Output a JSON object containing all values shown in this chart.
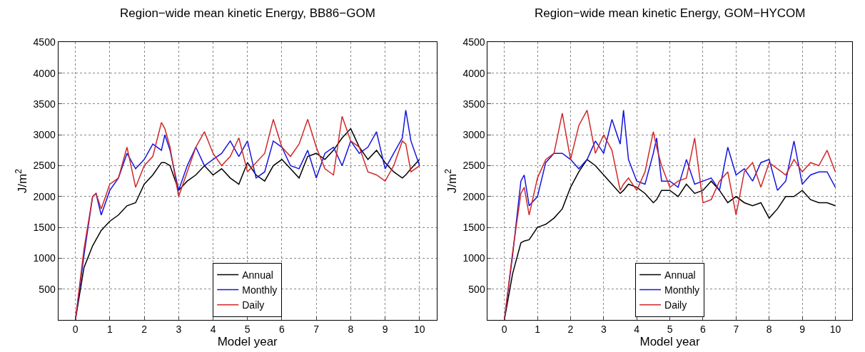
{
  "chart_data": [
    {
      "type": "line",
      "title": "Region−wide mean kinetic Energy, BB86−GOM",
      "xlabel": "Model year",
      "ylabel": "J/m$^{2}$",
      "xlim": [
        -0.5,
        10.5
      ],
      "ylim": [
        0,
        4500
      ],
      "xticks": [
        0,
        1,
        2,
        3,
        4,
        5,
        6,
        7,
        8,
        9,
        10
      ],
      "yticks": [
        500,
        1000,
        1500,
        2000,
        2500,
        3000,
        3500,
        4000,
        4500
      ],
      "grid": true,
      "legend": "bottom",
      "line_style": "solid",
      "marker": "none",
      "x": [
        0,
        0.25,
        0.5,
        0.6,
        0.75,
        1,
        1.25,
        1.5,
        1.75,
        2,
        2.25,
        2.5,
        2.6,
        2.75,
        3,
        3.25,
        3.5,
        3.75,
        4,
        4.25,
        4.5,
        4.75,
        5,
        5.25,
        5.5,
        5.75,
        6,
        6.25,
        6.5,
        6.75,
        7,
        7.25,
        7.5,
        7.75,
        8,
        8.25,
        8.5,
        8.75,
        9,
        9.25,
        9.5,
        9.6,
        9.75,
        10
      ],
      "series": [
        {
          "name": "Annual",
          "color": "#000000",
          "values": [
            0,
            850,
            1200,
            1300,
            1450,
            1600,
            1700,
            1850,
            1900,
            2200,
            2350,
            2550,
            2550,
            2500,
            2100,
            2250,
            2350,
            2500,
            2350,
            2450,
            2300,
            2200,
            2550,
            2350,
            2250,
            2500,
            2600,
            2450,
            2300,
            2650,
            2700,
            2600,
            2750,
            2950,
            3100,
            2800,
            2600,
            2750,
            2550,
            2400,
            2300,
            2350,
            2450,
            2600
          ]
        },
        {
          "name": "Monthly",
          "color": "#1414e0",
          "values": [
            0,
            1050,
            2000,
            2050,
            1700,
            2100,
            2300,
            2700,
            2450,
            2600,
            2850,
            2750,
            3000,
            2750,
            2100,
            2500,
            2800,
            2500,
            2600,
            2700,
            2900,
            2650,
            2900,
            2300,
            2400,
            2900,
            2800,
            2500,
            2450,
            2750,
            2300,
            2700,
            2800,
            2500,
            2900,
            2700,
            2800,
            3050,
            2450,
            2700,
            2950,
            3400,
            2900,
            2500
          ]
        },
        {
          "name": "Daily",
          "color": "#d02828",
          "values": [
            0,
            1150,
            2000,
            2050,
            1800,
            2200,
            2300,
            2800,
            2150,
            2500,
            2650,
            3200,
            3100,
            2800,
            2000,
            2400,
            2800,
            3050,
            2700,
            2500,
            2650,
            2950,
            2400,
            2550,
            2700,
            3250,
            2800,
            2650,
            2850,
            3250,
            2800,
            2450,
            2350,
            3300,
            2900,
            2800,
            2400,
            2350,
            2250,
            2500,
            2900,
            2850,
            2400,
            2500
          ]
        }
      ]
    },
    {
      "type": "line",
      "title": "Region−wide mean kinetic Energy, GOM−HYCOM",
      "xlabel": "Model year",
      "ylabel": "J/m$^{2}$",
      "xlim": [
        -0.5,
        10.5
      ],
      "ylim": [
        0,
        4500
      ],
      "xticks": [
        0,
        1,
        2,
        3,
        4,
        5,
        6,
        7,
        8,
        9,
        10
      ],
      "yticks": [
        500,
        1000,
        1500,
        2000,
        2500,
        3000,
        3500,
        4000,
        4500
      ],
      "grid": true,
      "legend": "bottom",
      "line_style": "solid",
      "marker": "none",
      "x": [
        0,
        0.25,
        0.5,
        0.6,
        0.75,
        1,
        1.25,
        1.5,
        1.75,
        2,
        2.25,
        2.5,
        2.75,
        3,
        3.25,
        3.5,
        3.6,
        3.75,
        4,
        4.25,
        4.5,
        4.6,
        4.75,
        5,
        5.25,
        5.5,
        5.75,
        6,
        6.25,
        6.5,
        6.75,
        7,
        7.25,
        7.5,
        7.75,
        8,
        8.25,
        8.5,
        8.75,
        9,
        9.25,
        9.5,
        9.75,
        10
      ],
      "series": [
        {
          "name": "Annual",
          "color": "#000000",
          "values": [
            0,
            750,
            1250,
            1280,
            1300,
            1500,
            1550,
            1650,
            1800,
            2150,
            2400,
            2600,
            2500,
            2350,
            2200,
            2050,
            2100,
            2200,
            2150,
            2050,
            1900,
            1950,
            2100,
            2100,
            2000,
            2200,
            2050,
            2100,
            2250,
            2100,
            1900,
            2000,
            1900,
            1850,
            1900,
            1650,
            1800,
            2000,
            2000,
            2100,
            1950,
            1900,
            1900,
            1850
          ]
        },
        {
          "name": "Monthly",
          "color": "#1414e0",
          "values": [
            0,
            1050,
            2250,
            2350,
            1850,
            2000,
            2550,
            2700,
            2700,
            2600,
            2450,
            2600,
            2900,
            2700,
            3250,
            2850,
            3400,
            2600,
            2250,
            2200,
            2700,
            2950,
            2250,
            2250,
            2150,
            2600,
            2200,
            2250,
            2300,
            2100,
            2800,
            2350,
            2450,
            2250,
            2550,
            2600,
            2100,
            2250,
            2900,
            2200,
            2350,
            2400,
            2400,
            2150
          ]
        },
        {
          "name": "Daily",
          "color": "#d02828",
          "values": [
            0,
            1100,
            2050,
            2150,
            1700,
            2300,
            2600,
            2700,
            3350,
            2600,
            3150,
            3400,
            2700,
            3000,
            2750,
            2100,
            2200,
            2300,
            2100,
            2400,
            3050,
            2800,
            2500,
            2150,
            2250,
            2300,
            2950,
            1900,
            1950,
            2250,
            2400,
            1700,
            2400,
            2550,
            2150,
            2550,
            2450,
            2350,
            2600,
            2400,
            2550,
            2500,
            2750,
            2400
          ]
        }
      ]
    }
  ]
}
